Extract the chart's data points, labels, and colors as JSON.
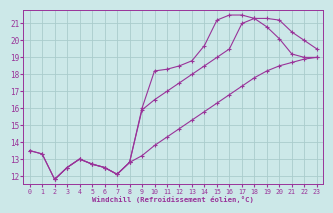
{
  "xlabel": "Windchill (Refroidissement éolien,°C)",
  "bg_color": "#cce8e8",
  "line_color": "#993399",
  "grid_color": "#aacccc",
  "xlim": [
    -0.5,
    23.5
  ],
  "ylim": [
    11.5,
    21.8
  ],
  "xticks": [
    0,
    1,
    2,
    3,
    4,
    5,
    6,
    7,
    8,
    9,
    10,
    11,
    12,
    13,
    14,
    15,
    16,
    17,
    18,
    19,
    20,
    21,
    22,
    23
  ],
  "yticks": [
    12,
    13,
    14,
    15,
    16,
    17,
    18,
    19,
    20,
    21
  ],
  "line1": {
    "comment": "peaked line - sharp rise from x=8, peak at x=15-17, then drops",
    "x": [
      0,
      1,
      2,
      3,
      4,
      5,
      6,
      7,
      8,
      9,
      10,
      11,
      12,
      13,
      14,
      15,
      16,
      17,
      18,
      19,
      20,
      21,
      22,
      23
    ],
    "y": [
      13.5,
      13.3,
      11.8,
      12.5,
      13.0,
      12.7,
      12.5,
      12.1,
      12.8,
      16.0,
      18.2,
      18.3,
      18.5,
      18.8,
      19.7,
      21.2,
      21.5,
      21.5,
      21.3,
      20.8,
      20.1,
      19.2,
      19.0,
      19.0
    ]
  },
  "line2": {
    "comment": "steady diagonal rise from bottom-left to top-right",
    "x": [
      0,
      1,
      2,
      3,
      4,
      5,
      6,
      7,
      8,
      9,
      10,
      11,
      12,
      13,
      14,
      15,
      16,
      17,
      18,
      19,
      20,
      21,
      22,
      23
    ],
    "y": [
      13.5,
      13.3,
      11.8,
      12.5,
      13.0,
      12.7,
      12.5,
      12.1,
      12.8,
      13.2,
      13.8,
      14.3,
      14.8,
      15.3,
      15.8,
      16.3,
      16.8,
      17.3,
      17.8,
      18.2,
      18.5,
      18.7,
      18.9,
      19.0
    ]
  },
  "line3": {
    "comment": "middle line - rises from x=2, steeper climb, peaks ~x=17-18 then drops",
    "x": [
      2,
      3,
      4,
      5,
      6,
      7,
      8,
      9,
      10,
      11,
      12,
      13,
      14,
      15,
      16,
      17,
      18,
      19,
      20,
      21,
      22,
      23
    ],
    "y": [
      11.8,
      12.5,
      13.0,
      12.7,
      12.5,
      12.1,
      12.8,
      15.9,
      16.5,
      17.0,
      17.5,
      18.0,
      18.5,
      19.0,
      19.5,
      21.0,
      21.3,
      21.3,
      21.2,
      20.5,
      20.0,
      19.5
    ]
  }
}
